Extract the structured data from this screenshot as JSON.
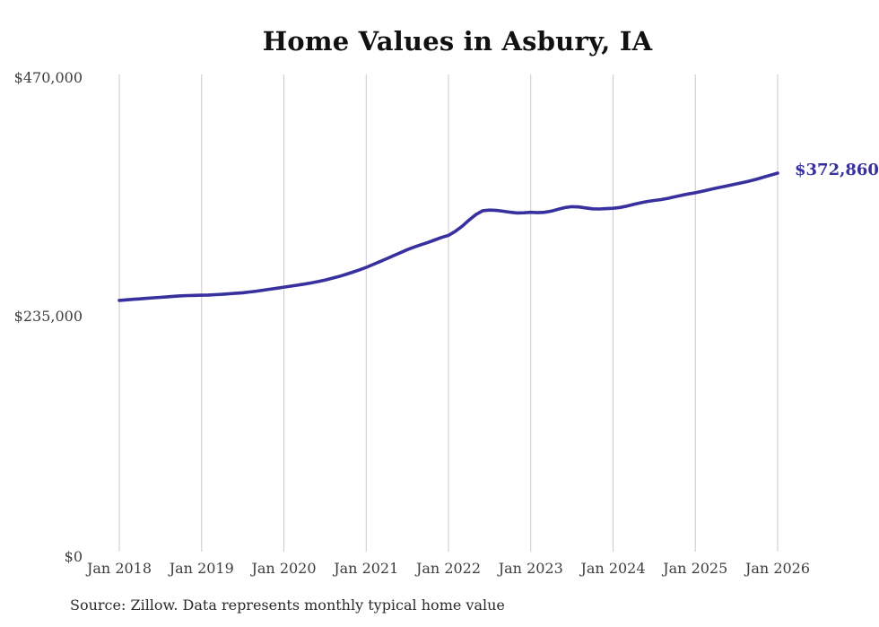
{
  "title": "Home Values in Asbury, IA",
  "source_note": "Source: Zillow. Data represents monthly typical home value",
  "colors": {
    "line": "#37309e",
    "annotation": "#37309e",
    "grid": "#c9c9c9",
    "tick_label": "#3d3d3d",
    "title": "#111111",
    "source": "#2b2b2b",
    "background": "#ffffff"
  },
  "y_axis": {
    "min": 0,
    "max": 470000,
    "ticks": [
      {
        "label": "$470,000",
        "value": 470000
      },
      {
        "label": "$235,000",
        "value": 235000
      },
      {
        "label": "$0",
        "value": 0
      }
    ]
  },
  "x_axis": {
    "ticks": [
      "Jan 2018",
      "Jan 2019",
      "Jan 2020",
      "Jan 2021",
      "Jan 2022",
      "Jan 2023",
      "Jan 2024",
      "Jan 2025",
      "Jan 2026"
    ]
  },
  "chart_data": {
    "type": "line",
    "title": "Home Values in Asbury, IA",
    "series_name": "Monthly typical home value",
    "unit": "USD",
    "x_frequency": "monthly",
    "ylim": [
      0,
      470000
    ],
    "grid": "vertical-only",
    "legend": "none",
    "annotation": {
      "label": "$372,860",
      "position": "end-of-line"
    },
    "months": [
      "2018-01",
      "2018-02",
      "2018-03",
      "2018-04",
      "2018-05",
      "2018-06",
      "2018-07",
      "2018-08",
      "2018-09",
      "2018-10",
      "2018-11",
      "2018-12",
      "2019-01",
      "2019-02",
      "2019-03",
      "2019-04",
      "2019-05",
      "2019-06",
      "2019-07",
      "2019-08",
      "2019-09",
      "2019-10",
      "2019-11",
      "2019-12",
      "2020-01",
      "2020-02",
      "2020-03",
      "2020-04",
      "2020-05",
      "2020-06",
      "2020-07",
      "2020-08",
      "2020-09",
      "2020-10",
      "2020-11",
      "2020-12",
      "2021-01",
      "2021-02",
      "2021-03",
      "2021-04",
      "2021-05",
      "2021-06",
      "2021-07",
      "2021-08",
      "2021-09",
      "2021-10",
      "2021-11",
      "2021-12",
      "2022-01",
      "2022-02",
      "2022-03",
      "2022-04",
      "2022-05",
      "2022-06",
      "2022-07",
      "2022-08",
      "2022-09",
      "2022-10",
      "2022-11",
      "2022-12",
      "2023-01",
      "2023-02",
      "2023-03",
      "2023-04",
      "2023-05",
      "2023-06",
      "2023-07",
      "2023-08",
      "2023-09",
      "2023-10",
      "2023-11",
      "2023-12",
      "2024-01",
      "2024-02",
      "2024-03",
      "2024-04",
      "2024-05",
      "2024-06",
      "2024-07",
      "2024-08",
      "2024-09",
      "2024-10",
      "2024-11",
      "2024-12",
      "2025-01",
      "2025-02",
      "2025-03",
      "2025-04",
      "2025-05",
      "2025-06",
      "2025-07",
      "2025-08",
      "2025-09",
      "2025-10",
      "2025-11",
      "2025-12",
      "2026-01"
    ],
    "values": [
      247500,
      248000,
      248500,
      249000,
      249500,
      250000,
      250500,
      251000,
      251500,
      252000,
      252200,
      252400,
      252600,
      252800,
      253100,
      253500,
      254000,
      254500,
      255000,
      255800,
      256600,
      257500,
      258500,
      259500,
      260500,
      261500,
      262500,
      263500,
      264700,
      266000,
      267500,
      269200,
      271000,
      273000,
      275200,
      277500,
      280000,
      282800,
      285600,
      288500,
      291500,
      294500,
      297500,
      300000,
      302300,
      304500,
      307000,
      309500,
      311500,
      315500,
      320500,
      326500,
      332000,
      335800,
      336400,
      336100,
      335300,
      334300,
      333600,
      333800,
      334200,
      333900,
      334200,
      335400,
      337200,
      338900,
      339800,
      339500,
      338500,
      337700,
      337500,
      337800,
      338200,
      339000,
      340300,
      342000,
      343600,
      344900,
      345900,
      346800,
      348000,
      349500,
      351000,
      352300,
      353500,
      355000,
      356500,
      358000,
      359400,
      360800,
      362200,
      363600,
      365200,
      367000,
      368900,
      370900,
      372860
    ]
  }
}
